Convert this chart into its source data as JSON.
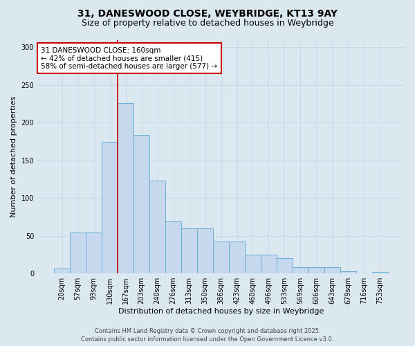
{
  "title_line1": "31, DANESWOOD CLOSE, WEYBRIDGE, KT13 9AY",
  "title_line2": "Size of property relative to detached houses in Weybridge",
  "xlabel": "Distribution of detached houses by size in Weybridge",
  "ylabel": "Number of detached properties",
  "bar_values": [
    7,
    54,
    54,
    175,
    226,
    184,
    123,
    69,
    60,
    60,
    42,
    42,
    25,
    25,
    20,
    8,
    8,
    8,
    3,
    0,
    2
  ],
  "categories": [
    "20sqm",
    "57sqm",
    "93sqm",
    "130sqm",
    "167sqm",
    "203sqm",
    "240sqm",
    "276sqm",
    "313sqm",
    "350sqm",
    "386sqm",
    "423sqm",
    "460sqm",
    "496sqm",
    "533sqm",
    "569sqm",
    "606sqm",
    "643sqm",
    "679sqm",
    "716sqm",
    "753sqm"
  ],
  "bar_color": "#c5d8ed",
  "bar_edge_color": "#6aaed6",
  "bar_width": 1.0,
  "vline_x_index": 3.5,
  "vline_color": "#cc0000",
  "annotation_text": "31 DANESWOOD CLOSE: 160sqm\n← 42% of detached houses are smaller (415)\n58% of semi-detached houses are larger (577) →",
  "annotation_box_facecolor": "#ffffff",
  "annotation_box_edgecolor": "#cc0000",
  "ylim": [
    0,
    310
  ],
  "yticks": [
    0,
    50,
    100,
    150,
    200,
    250,
    300
  ],
  "grid_color": "#c8d8e8",
  "background_color": "#dce8f0",
  "footer_text": "Contains HM Land Registry data © Crown copyright and database right 2025.\nContains public sector information licensed under the Open Government Licence v3.0.",
  "title1_fontsize": 10,
  "title2_fontsize": 9,
  "axis_label_fontsize": 8,
  "tick_fontsize": 7,
  "annotation_fontsize": 7.5,
  "footer_fontsize": 6
}
